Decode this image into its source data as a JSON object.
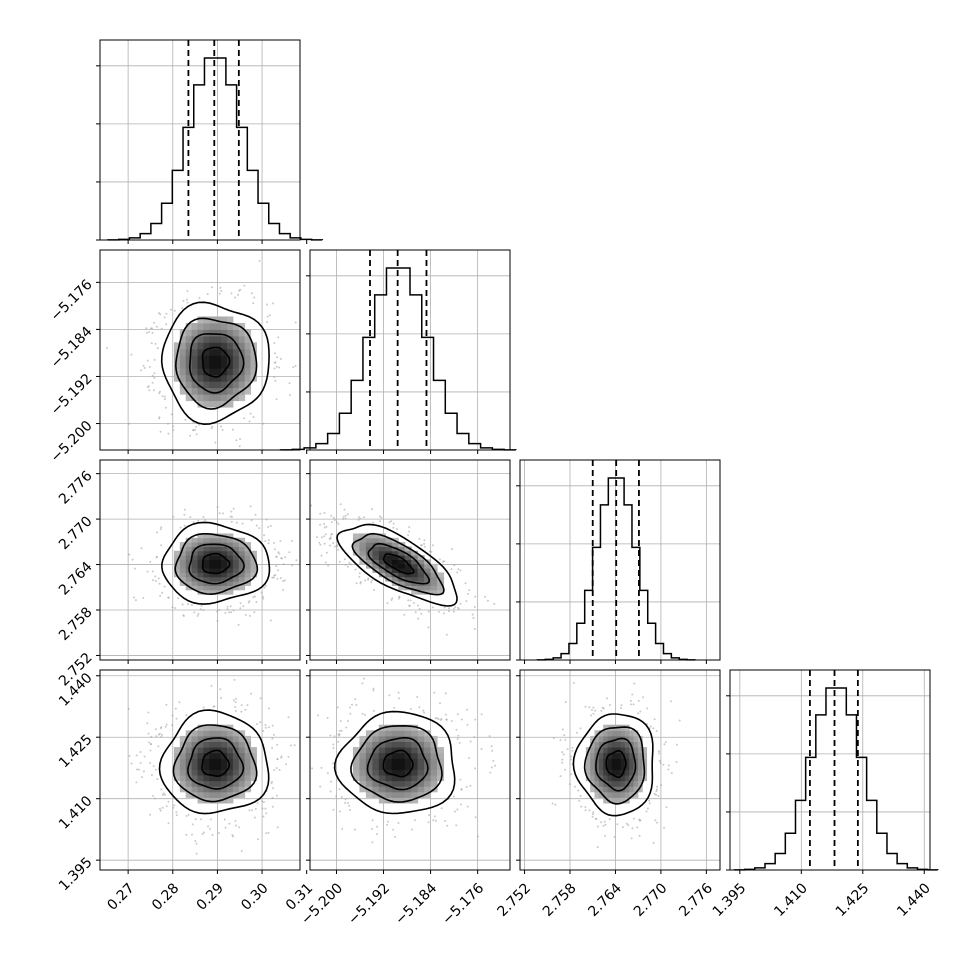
{
  "chart_data": {
    "type": "corner",
    "params": [
      {
        "ticks": [
          0.27,
          0.28,
          0.29,
          0.3,
          0.31
        ],
        "tick_labels": [
          "0.27",
          "0.28",
          "0.29",
          "0.30",
          "0.31"
        ],
        "range": [
          0.2637,
          0.3085
        ],
        "mean": 0.2895,
        "sd": 0.006,
        "quantiles": [
          0.2835,
          0.2893,
          0.2948
        ]
      },
      {
        "ticks": [
          -5.2,
          -5.192,
          -5.184,
          -5.176
        ],
        "tick_labels": [
          "−5.200",
          "−5.192",
          "−5.184",
          "−5.176"
        ],
        "range": [
          -5.2045,
          -5.1705
        ],
        "mean": -5.1895,
        "sd": 0.005,
        "quantiles": [
          -5.1943,
          -5.1896,
          -5.1847
        ]
      },
      {
        "ticks": [
          2.752,
          2.758,
          2.764,
          2.77,
          2.776
        ],
        "tick_labels": [
          "2.752",
          "2.758",
          "2.764",
          "2.770",
          "2.776"
        ],
        "range": [
          2.7514,
          2.7778
        ],
        "mean": 2.7641,
        "sd": 0.0026,
        "quantiles": [
          2.761,
          2.7641,
          2.7671
        ]
      },
      {
        "ticks": [
          1.395,
          1.41,
          1.425,
          1.44
        ],
        "tick_labels": [
          "1.395",
          "1.410",
          "1.425",
          "1.440"
        ],
        "range": [
          1.3926,
          1.4414
        ],
        "mean": 1.4185,
        "sd": 0.0062,
        "quantiles": [
          1.4121,
          1.4181,
          1.4238
        ]
      }
    ],
    "correlations": [
      [
        1,
        0,
        0,
        0
      ],
      [
        0,
        1,
        -0.7,
        0
      ],
      [
        0,
        -0.7,
        1,
        0
      ],
      [
        0,
        0,
        0,
        1
      ]
    ],
    "hist_bins": 20,
    "contour_levels_sigma": [
      0.5,
      1.0,
      1.5,
      2.0
    ],
    "quantile_levels": [
      0.16,
      0.5,
      0.84
    ],
    "grid": true,
    "colors": {
      "line": "#000000",
      "grid": "#b0b0b0",
      "scatter": "#9e9e9e"
    }
  }
}
